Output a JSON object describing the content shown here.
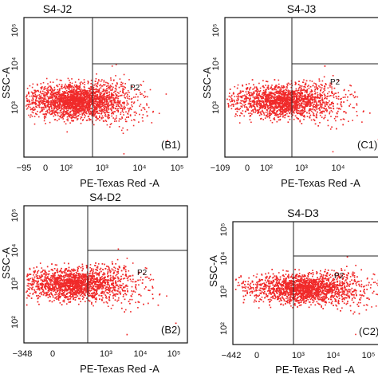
{
  "chart_data": [
    {
      "type": "scatter",
      "title": "S4-J2",
      "panel_label": "(B1)",
      "xlabel": "PE-Texas Red -A",
      "ylabel": "SSC-A",
      "x_ticks": [
        "−95",
        "0",
        "10²",
        "10³",
        "10⁴",
        "10⁵"
      ],
      "y_ticks": [
        "10³",
        "10⁴",
        "10⁵"
      ],
      "gate": {
        "name": "P2",
        "x_threshold": 700,
        "y_threshold": 10000
      },
      "population": {
        "x_center_log": 2.2,
        "x_spread_log": 0.75,
        "y_center_log": 3.45,
        "y_spread_log": 0.18,
        "n": 2600
      }
    },
    {
      "type": "scatter",
      "title": "S4-J3",
      "panel_label": "(C1)",
      "xlabel": "PE-Texas Red -A",
      "ylabel": "SSC-A",
      "x_ticks": [
        "−109",
        "0",
        "10²",
        "10³",
        "10⁴"
      ],
      "y_ticks": [
        "10³",
        "10⁴",
        "10⁵"
      ],
      "gate": {
        "name": "P2",
        "x_threshold": 700,
        "y_threshold": 10000
      },
      "population": {
        "x_center_log": 2.4,
        "x_spread_log": 0.8,
        "y_center_log": 3.45,
        "y_spread_log": 0.17,
        "n": 2600
      }
    },
    {
      "type": "scatter",
      "title": "S4-D2",
      "panel_label": "(B2)",
      "xlabel": "PE-Texas Red -A",
      "ylabel": "SSC-A",
      "x_ticks": [
        "−348",
        "0",
        "10³",
        "10⁴",
        "10⁵"
      ],
      "y_ticks": [
        "10²",
        "10³",
        "10⁴",
        "10⁵"
      ],
      "gate": {
        "name": "P2",
        "x_threshold": 700,
        "y_threshold": 10000
      },
      "population": {
        "x_center_log": 2.0,
        "x_spread_log": 0.9,
        "y_center_log": 3.2,
        "y_spread_log": 0.2,
        "n": 3000
      }
    },
    {
      "type": "scatter",
      "title": "S4-D3",
      "panel_label": "(C2)",
      "xlabel": "PE-Texas Red -A",
      "ylabel": "SSC-A",
      "x_ticks": [
        "−442",
        "0",
        "10³",
        "10⁴",
        "10⁵"
      ],
      "y_ticks": [
        "10²",
        "10³",
        "10⁴",
        "10⁵"
      ],
      "gate": {
        "name": "P2",
        "x_threshold": 700,
        "y_threshold": 10000
      },
      "population": {
        "x_center_log": 2.8,
        "x_spread_log": 0.85,
        "y_center_log": 3.25,
        "y_spread_log": 0.2,
        "n": 3000
      }
    }
  ],
  "colors": {
    "dots": "#f02a2a",
    "axes": "#111111",
    "gate": "#222222"
  }
}
